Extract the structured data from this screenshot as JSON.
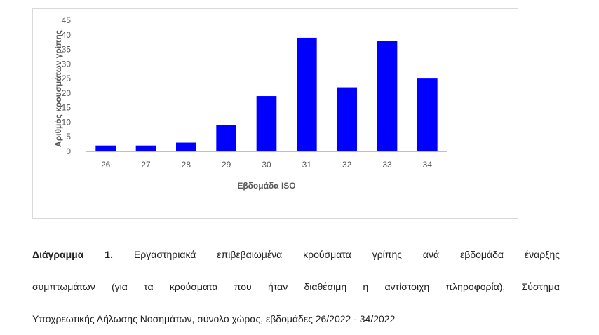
{
  "chart_data": {
    "type": "bar",
    "categories": [
      "26",
      "27",
      "28",
      "29",
      "30",
      "31",
      "32",
      "33",
      "34"
    ],
    "values": [
      2,
      2,
      3,
      9,
      19,
      39,
      22,
      38,
      25
    ],
    "title": "",
    "xlabel": "Εβδομάδα ISO",
    "ylabel": "Αριθμός κρουσμάτων γρίπης",
    "ylim": [
      0,
      45
    ],
    "yticks": [
      0,
      5,
      10,
      15,
      20,
      25,
      30,
      35,
      40,
      45
    ],
    "grid": false,
    "legend": "none",
    "bar_color": "#0000ff"
  },
  "caption": {
    "label": "Διάγραμμα 1.",
    "line1": "Εργαστηριακά επιβεβαιωμένα κρούσματα γρίπης ανά εβδομάδα έναρξης",
    "line2": "συμπτωμάτων (για τα κρούσματα που ήταν διαθέσιμη η αντίστοιχη πληροφορία), Σύστημα",
    "line3": "Υποχρεωτικής Δήλωσης Νοσημάτων, σύνολο χώρας, εβδομάδες 26/2022 - 34/2022"
  }
}
